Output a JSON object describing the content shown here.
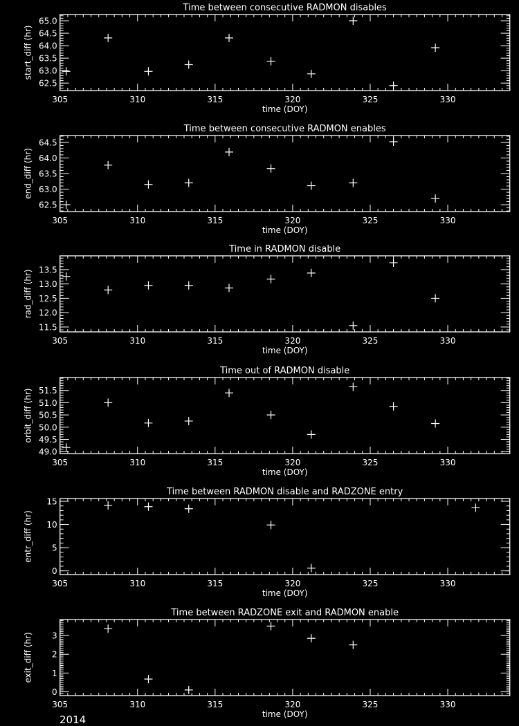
{
  "year_label": "2014",
  "colors": {
    "background": "#000000",
    "foreground": "#ffffff"
  },
  "chart_data": [
    {
      "type": "scatter",
      "title": "Time between consecutive RADMON disables",
      "xlabel": "time (DOY)",
      "ylabel": "start_diff (hr)",
      "xlim": [
        305,
        334
      ],
      "ylim": [
        62.2,
        65.25
      ],
      "xticks": [
        305,
        310,
        315,
        320,
        325,
        330
      ],
      "xtick_labels": [
        "305",
        "310",
        "315",
        "320",
        "325",
        "330"
      ],
      "yticks": [
        62.5,
        63.0,
        63.5,
        64.0,
        64.5,
        65.0
      ],
      "ytick_labels": [
        "62.5",
        "63.0",
        "63.5",
        "64.0",
        "64.5",
        "65.0"
      ],
      "yminor": 0.1,
      "marker": "plus",
      "x": [
        305.4,
        308.1,
        310.7,
        313.3,
        315.9,
        318.6,
        321.2,
        323.9,
        326.5,
        329.2
      ],
      "y": [
        62.97,
        64.31,
        62.97,
        63.24,
        64.31,
        63.38,
        62.87,
        65.0,
        62.4,
        63.92
      ]
    },
    {
      "type": "scatter",
      "title": "Time between consecutive RADMON enables",
      "xlabel": "time (DOY)",
      "ylabel": "end_diff (hr)",
      "xlim": [
        305,
        334
      ],
      "ylim": [
        62.28,
        64.72
      ],
      "xticks": [
        305,
        310,
        315,
        320,
        325,
        330
      ],
      "xtick_labels": [
        "305",
        "310",
        "315",
        "320",
        "325",
        "330"
      ],
      "yticks": [
        62.5,
        63.0,
        63.5,
        64.0,
        64.5
      ],
      "ytick_labels": [
        "62.5",
        "63.0",
        "63.5",
        "64.0",
        "64.5"
      ],
      "yminor": 0.1,
      "marker": "plus",
      "x": [
        305.4,
        308.1,
        310.7,
        313.3,
        315.9,
        318.6,
        321.2,
        323.9,
        326.5,
        329.2
      ],
      "y": [
        62.5,
        63.77,
        63.15,
        63.2,
        64.19,
        63.66,
        63.11,
        63.2,
        64.52,
        62.7
      ]
    },
    {
      "type": "scatter",
      "title": "Time in RADMON disable",
      "xlabel": "time (DOY)",
      "ylabel": "rad_diff (hr)",
      "xlim": [
        305,
        334
      ],
      "ylim": [
        11.33,
        13.98
      ],
      "xticks": [
        305,
        310,
        315,
        320,
        325,
        330
      ],
      "xtick_labels": [
        "305",
        "310",
        "315",
        "320",
        "325",
        "330"
      ],
      "yticks": [
        11.5,
        12.0,
        12.5,
        13.0,
        13.5
      ],
      "ytick_labels": [
        "11.5",
        "12.0",
        "12.5",
        "13.0",
        "13.5"
      ],
      "yminor": 0.1,
      "marker": "plus",
      "x": [
        305.4,
        308.1,
        310.7,
        313.3,
        315.9,
        318.6,
        321.2,
        323.9,
        326.5,
        329.2
      ],
      "y": [
        13.26,
        12.79,
        12.95,
        12.95,
        12.86,
        13.17,
        13.38,
        11.55,
        13.74,
        12.5
      ]
    },
    {
      "type": "scatter",
      "title": "Time out of RADMON disable",
      "xlabel": "time (DOY)",
      "ylabel": "orbit_diff (hr)",
      "xlim": [
        305,
        334
      ],
      "ylim": [
        48.92,
        52.03
      ],
      "xticks": [
        305,
        310,
        315,
        320,
        325,
        330
      ],
      "xtick_labels": [
        "305",
        "310",
        "315",
        "320",
        "325",
        "330"
      ],
      "yticks": [
        49.0,
        49.5,
        50.0,
        50.5,
        51.0,
        51.5
      ],
      "ytick_labels": [
        "49.0",
        "49.5",
        "50.0",
        "50.5",
        "51.0",
        "51.5"
      ],
      "yminor": 0.1,
      "marker": "plus",
      "x": [
        305.4,
        308.1,
        310.7,
        313.3,
        315.9,
        318.6,
        321.2,
        323.9,
        326.5,
        329.2
      ],
      "y": [
        49.17,
        51.0,
        50.17,
        50.25,
        51.4,
        50.5,
        49.7,
        51.65,
        50.85,
        50.15
      ]
    },
    {
      "type": "scatter",
      "title": "Time between RADMON disable and RADZONE entry",
      "xlabel": "time (DOY)",
      "ylabel": "entr_diff (hr)",
      "xlim": [
        305,
        334
      ],
      "ylim": [
        -0.8,
        15.6
      ],
      "xticks": [
        305,
        310,
        315,
        320,
        325,
        330
      ],
      "xtick_labels": [
        "305",
        "310",
        "315",
        "320",
        "325",
        "330"
      ],
      "yticks": [
        0,
        5,
        10,
        15
      ],
      "ytick_labels": [
        "0",
        "5",
        "10",
        "15"
      ],
      "yminor": 1,
      "marker": "plus",
      "x": [
        308.1,
        310.7,
        313.3,
        318.6,
        321.2,
        331.8
      ],
      "y": [
        14.1,
        13.85,
        13.4,
        9.9,
        0.6,
        13.6
      ]
    },
    {
      "type": "scatter",
      "title": "Time between RADZONE exit and RADMON enable",
      "xlabel": "time (DOY)",
      "ylabel": "exit_diff (hr)",
      "xlim": [
        305,
        334
      ],
      "ylim": [
        -0.2,
        3.85
      ],
      "xticks": [
        305,
        310,
        315,
        320,
        325,
        330
      ],
      "xtick_labels": [
        "305",
        "310",
        "315",
        "320",
        "325",
        "330"
      ],
      "yticks": [
        0,
        1,
        2,
        3
      ],
      "ytick_labels": [
        "0",
        "1",
        "2",
        "3"
      ],
      "yminor": 0.1,
      "marker": "plus",
      "x": [
        308.1,
        310.7,
        313.3,
        318.6,
        321.2,
        323.9
      ],
      "y": [
        3.36,
        0.68,
        0.1,
        3.5,
        2.85,
        2.5
      ]
    }
  ]
}
